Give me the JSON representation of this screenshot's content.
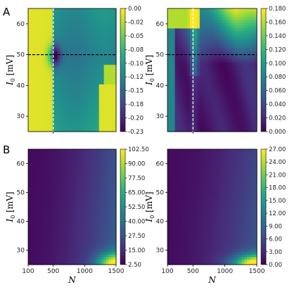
{
  "panel_labels": [
    "A",
    "B"
  ],
  "axis_text": {
    "ylabel_symbol": "I",
    "ylabel_sub": "0",
    "ylabel_unit": " [mV]",
    "xlabel": "N"
  },
  "colormap": "viridis",
  "chart_data": [
    {
      "type": "heatmap",
      "id": "A-left",
      "x_range": [
        100,
        1500
      ],
      "y_range": [
        25,
        65
      ],
      "xticks": [
        500
      ],
      "yticks": [
        30,
        40,
        50,
        60
      ],
      "xticklabels_shown": false,
      "colorbar": {
        "min": -0.23,
        "max": 0.0,
        "ticks": [
          "0.00",
          "-0.02",
          "-0.05",
          "-0.08",
          "-0.10",
          "-0.12",
          "-0.15",
          "-0.18",
          "-0.20",
          "-0.23"
        ]
      },
      "crosshair": {
        "x": 500,
        "y": 50,
        "vertical_color": "#ffffff",
        "horizontal_color": "#000000"
      }
    },
    {
      "type": "heatmap",
      "id": "A-right",
      "x_range": [
        100,
        1500
      ],
      "y_range": [
        25,
        65
      ],
      "xticks": [
        500
      ],
      "yticks": [
        30,
        40,
        50,
        60
      ],
      "xticklabels_shown": false,
      "colorbar": {
        "min": 0.0,
        "max": 0.18,
        "ticks": [
          "0.180",
          "0.160",
          "0.140",
          "0.120",
          "0.100",
          "0.080",
          "0.060",
          "0.040",
          "0.020",
          "0.000"
        ]
      },
      "crosshair": {
        "x": 500,
        "y": 50,
        "vertical_color": "#ffffff",
        "horizontal_color": "#000000"
      }
    },
    {
      "type": "heatmap",
      "id": "B-left",
      "x_range": [
        100,
        1500
      ],
      "y_range": [
        25,
        65
      ],
      "xticks": [
        100,
        500,
        1000,
        1500
      ],
      "yticks": [
        30,
        40,
        50,
        60
      ],
      "xticklabels": [
        "100",
        "500",
        "1000",
        "1500"
      ],
      "colorbar": {
        "min": 2.5,
        "max": 102.5,
        "ticks": [
          "102.50",
          "90.00",
          "77.50",
          "65.00",
          "52.50",
          "40.00",
          "27.50",
          "15.00",
          "2.50"
        ]
      }
    },
    {
      "type": "heatmap",
      "id": "B-right",
      "x_range": [
        100,
        1500
      ],
      "y_range": [
        25,
        65
      ],
      "xticks": [
        100,
        500,
        1000,
        1500
      ],
      "yticks": [
        30,
        40,
        50,
        60
      ],
      "xticklabels": [
        "100",
        "500",
        "1000",
        "1500"
      ],
      "colorbar": {
        "min": 0.0,
        "max": 27.0,
        "ticks": [
          "27.00",
          "24.00",
          "21.00",
          "18.00",
          "15.00",
          "12.00",
          "9.00",
          "6.00",
          "3.00",
          "0.00"
        ]
      }
    }
  ]
}
